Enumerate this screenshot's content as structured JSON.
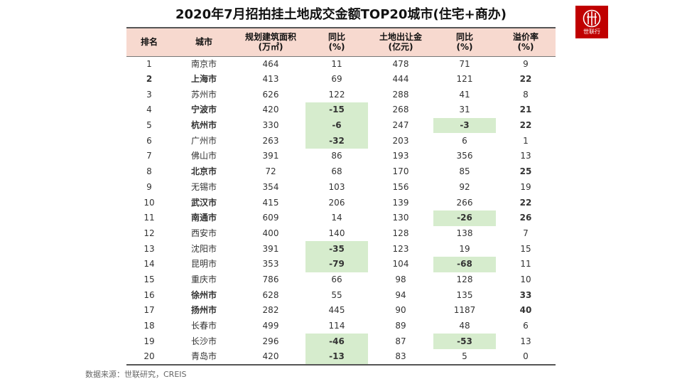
{
  "title": "2020年7月招拍挂土地成交金额TOP20城市(住宅+商办)",
  "logo": {
    "text": "世联行"
  },
  "table": {
    "headers": [
      [
        "排名"
      ],
      [
        "城市"
      ],
      [
        "规划建筑面积",
        "(万㎡)"
      ],
      [
        "同比",
        "(%)"
      ],
      [
        "土地出让金",
        "(亿元)"
      ],
      [
        "同比",
        "(%)"
      ],
      [
        "溢价率",
        "(%)"
      ]
    ],
    "rows": [
      {
        "rank": "1",
        "city": "南京市",
        "area": "464",
        "area_yoy": "11",
        "revenue": "478",
        "rev_yoy": "71",
        "premium": "9"
      },
      {
        "rank": "2",
        "city": "上海市",
        "area": "413",
        "area_yoy": "69",
        "revenue": "444",
        "rev_yoy": "121",
        "premium": "22"
      },
      {
        "rank": "3",
        "city": "苏州市",
        "area": "626",
        "area_yoy": "122",
        "revenue": "288",
        "rev_yoy": "41",
        "premium": "8"
      },
      {
        "rank": "4",
        "city": "宁波市",
        "area": "420",
        "area_yoy": "-15",
        "revenue": "268",
        "rev_yoy": "31",
        "premium": "21"
      },
      {
        "rank": "5",
        "city": "杭州市",
        "area": "330",
        "area_yoy": "-6",
        "revenue": "247",
        "rev_yoy": "-3",
        "premium": "22"
      },
      {
        "rank": "6",
        "city": "广州市",
        "area": "263",
        "area_yoy": "-32",
        "revenue": "203",
        "rev_yoy": "6",
        "premium": "1"
      },
      {
        "rank": "7",
        "city": "佛山市",
        "area": "391",
        "area_yoy": "86",
        "revenue": "193",
        "rev_yoy": "356",
        "premium": "13"
      },
      {
        "rank": "8",
        "city": "北京市",
        "area": "72",
        "area_yoy": "68",
        "revenue": "170",
        "rev_yoy": "85",
        "premium": "25"
      },
      {
        "rank": "9",
        "city": "无锡市",
        "area": "354",
        "area_yoy": "103",
        "revenue": "156",
        "rev_yoy": "92",
        "premium": "19"
      },
      {
        "rank": "10",
        "city": "武汉市",
        "area": "415",
        "area_yoy": "206",
        "revenue": "139",
        "rev_yoy": "266",
        "premium": "22"
      },
      {
        "rank": "11",
        "city": "南通市",
        "area": "609",
        "area_yoy": "14",
        "revenue": "130",
        "rev_yoy": "-26",
        "premium": "26"
      },
      {
        "rank": "12",
        "city": "西安市",
        "area": "400",
        "area_yoy": "140",
        "revenue": "128",
        "rev_yoy": "138",
        "premium": "7"
      },
      {
        "rank": "13",
        "city": "沈阳市",
        "area": "391",
        "area_yoy": "-35",
        "revenue": "123",
        "rev_yoy": "19",
        "premium": "15"
      },
      {
        "rank": "14",
        "city": "昆明市",
        "area": "353",
        "area_yoy": "-79",
        "revenue": "104",
        "rev_yoy": "-68",
        "premium": "11"
      },
      {
        "rank": "15",
        "city": "重庆市",
        "area": "786",
        "area_yoy": "66",
        "revenue": "98",
        "rev_yoy": "128",
        "premium": "10"
      },
      {
        "rank": "16",
        "city": "徐州市",
        "area": "628",
        "area_yoy": "55",
        "revenue": "94",
        "rev_yoy": "135",
        "premium": "33"
      },
      {
        "rank": "17",
        "city": "扬州市",
        "area": "282",
        "area_yoy": "445",
        "revenue": "90",
        "rev_yoy": "1187",
        "premium": "40"
      },
      {
        "rank": "18",
        "city": "长春市",
        "area": "499",
        "area_yoy": "114",
        "revenue": "89",
        "rev_yoy": "48",
        "premium": "6"
      },
      {
        "rank": "19",
        "city": "长沙市",
        "area": "296",
        "area_yoy": "-46",
        "revenue": "87",
        "rev_yoy": "-53",
        "premium": "13"
      },
      {
        "rank": "20",
        "city": "青岛市",
        "area": "420",
        "area_yoy": "-13",
        "revenue": "83",
        "rev_yoy": "5",
        "premium": "0"
      }
    ]
  },
  "source": "数据来源：世联研究，CREIS",
  "colors": {
    "header_bg": "#f7d9cf",
    "highlight_red": "#c00000",
    "negative_green": "#2aa02a",
    "negative_bg": "#d6eccd",
    "logo_bg": "#c00000"
  }
}
